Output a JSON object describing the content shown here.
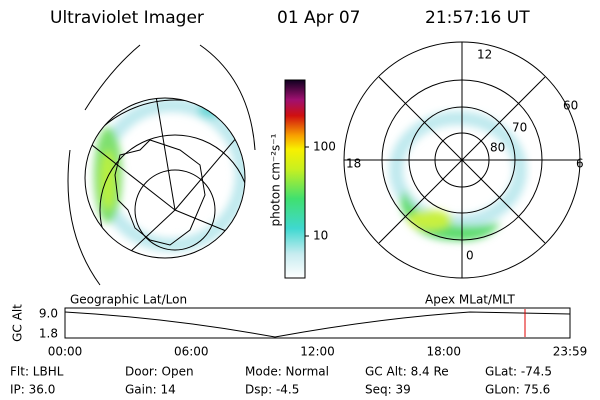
{
  "header": {
    "title": "Ultraviolet Imager",
    "date": "01 Apr 07",
    "time": "21:57:16 UT"
  },
  "colorbar": {
    "label": "photon cm⁻²s⁻¹",
    "ticks": [
      "100",
      "10"
    ]
  },
  "polar": {
    "mlt_labels": [
      "12",
      "18",
      "6",
      "0"
    ],
    "lat_labels": [
      "60",
      "70",
      "80"
    ]
  },
  "panels": {
    "left": "Geographic Lat/Lon",
    "right": "Apex MLat/MLT"
  },
  "altitude": {
    "ylabel": "GC Alt",
    "yticks": [
      "9.0",
      "1.8"
    ],
    "xticks": [
      "00:00",
      "06:00",
      "12:00",
      "18:00",
      "23:59"
    ]
  },
  "status": {
    "rows": [
      [
        "Flt: LBHL",
        "Door: Open",
        "Mode: Normal",
        "GC Alt: 8.4 Re",
        "GLat: -74.5"
      ],
      [
        "IP: 36.0",
        "Gain: 14",
        "Dsp: -4.5",
        "Seq: 39",
        "GLon: 75.6"
      ]
    ]
  }
}
